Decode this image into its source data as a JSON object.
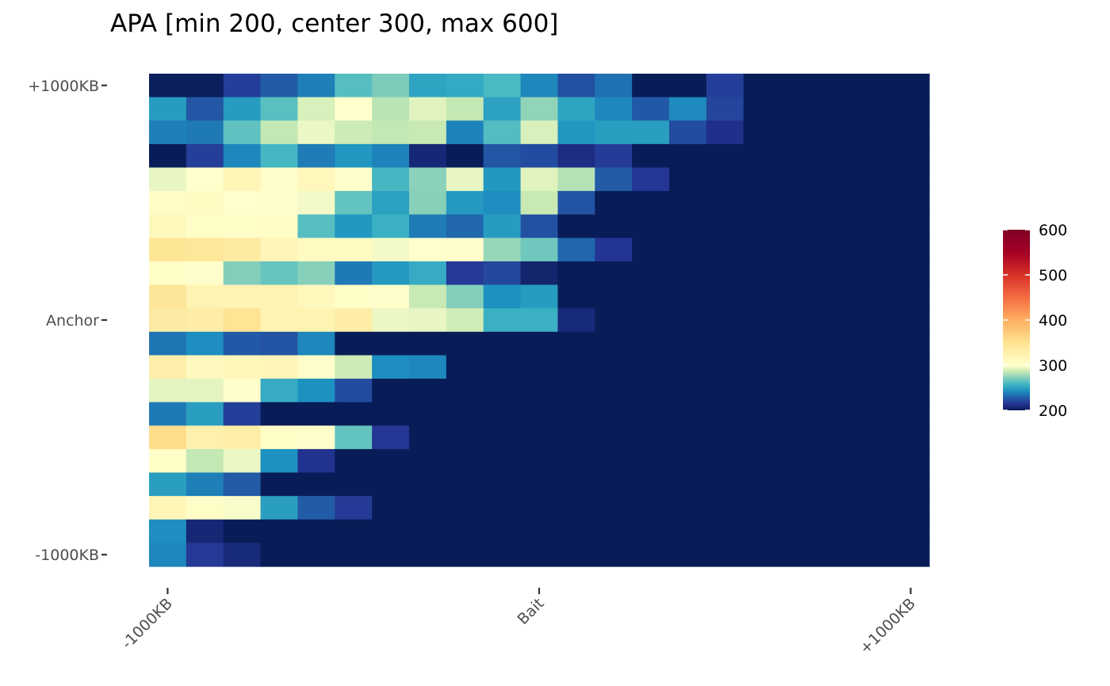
{
  "chart_data": {
    "type": "heatmap",
    "title": "APA [min 200, center 300, max 600]",
    "xlabel": "",
    "ylabel": "",
    "x_ticks": [
      "-1000KB",
      "Bait",
      "+1000KB"
    ],
    "y_ticks": [
      "+1000KB",
      "Anchor",
      "-1000KB"
    ],
    "colorbar": {
      "min": 200,
      "center": 300,
      "max": 600,
      "ticks": [
        200,
        300,
        400,
        500,
        600
      ],
      "palette": [
        "#081d58",
        "#253494",
        "#225ea8",
        "#1d91c0",
        "#41b6c4",
        "#7fcdbb",
        "#c7e9b4",
        "#ffffcc",
        "#fee391",
        "#fdae61",
        "#f46d43",
        "#d73027",
        "#a50026",
        "#800026"
      ]
    },
    "n_cols": 21,
    "n_rows": 21,
    "grid": false,
    "legend_position": "right",
    "rows_top_to_bottom": [
      [
        201,
        201,
        218,
        228,
        238,
        262,
        271,
        250,
        252,
        259,
        240,
        224,
        234,
        200,
        200,
        218,
        200,
        200,
        200,
        200,
        200
      ],
      [
        247,
        226,
        247,
        263,
        290,
        300,
        283,
        292,
        285,
        249,
        275,
        250,
        240,
        227,
        241,
        220,
        200,
        200,
        200,
        200,
        200
      ],
      [
        238,
        236,
        264,
        285,
        295,
        287,
        285,
        286,
        239,
        261,
        290,
        245,
        248,
        248,
        222,
        212,
        200,
        200,
        200,
        200,
        200
      ],
      [
        200,
        218,
        240,
        258,
        237,
        245,
        239,
        207,
        200,
        226,
        222,
        210,
        217,
        200,
        200,
        200,
        200,
        200,
        200,
        200,
        200
      ],
      [
        294,
        300,
        318,
        302,
        314,
        301,
        258,
        274,
        294,
        245,
        292,
        282,
        228,
        215,
        200,
        200,
        200,
        200,
        200,
        200,
        200
      ],
      [
        305,
        308,
        300,
        302,
        297,
        265,
        249,
        273,
        246,
        242,
        286,
        225,
        200,
        200,
        200,
        200,
        200,
        200,
        200,
        200,
        200
      ],
      [
        313,
        303,
        303,
        305,
        262,
        245,
        255,
        237,
        231,
        247,
        224,
        200,
        200,
        200,
        200,
        200,
        200,
        200,
        200,
        200,
        200
      ],
      [
        345,
        343,
        336,
        317,
        309,
        309,
        297,
        300,
        302,
        276,
        268,
        231,
        214,
        200,
        200,
        200,
        200,
        200,
        200,
        200,
        200
      ],
      [
        303,
        302,
        272,
        266,
        273,
        236,
        246,
        253,
        216,
        221,
        205,
        200,
        200,
        200,
        200,
        200,
        200,
        200,
        200,
        200,
        200
      ],
      [
        344,
        322,
        321,
        321,
        313,
        303,
        302,
        286,
        272,
        243,
        247,
        200,
        200,
        200,
        200,
        200,
        200,
        200,
        200,
        200,
        200
      ],
      [
        335,
        332,
        348,
        321,
        322,
        333,
        295,
        294,
        288,
        255,
        255,
        208,
        200,
        200,
        200,
        200,
        200,
        200,
        200,
        200,
        200
      ],
      [
        235,
        242,
        227,
        225,
        240,
        200,
        200,
        200,
        200,
        200,
        200,
        200,
        200,
        200,
        200,
        200,
        200,
        200,
        200,
        200,
        200
      ],
      [
        330,
        312,
        316,
        317,
        302,
        287,
        242,
        240,
        200,
        200,
        200,
        200,
        200,
        200,
        200,
        200,
        200,
        200,
        200,
        200,
        200
      ],
      [
        293,
        293,
        301,
        253,
        243,
        222,
        200,
        200,
        200,
        200,
        200,
        200,
        200,
        200,
        200,
        200,
        200,
        200,
        200,
        200,
        200
      ],
      [
        236,
        248,
        218,
        200,
        200,
        200,
        200,
        200,
        200,
        200,
        200,
        200,
        200,
        200,
        200,
        200,
        200,
        200,
        200,
        200,
        200
      ],
      [
        356,
        326,
        331,
        304,
        302,
        265,
        215,
        200,
        200,
        200,
        200,
        200,
        200,
        200,
        200,
        200,
        200,
        200,
        200,
        200,
        200
      ],
      [
        303,
        285,
        295,
        243,
        213,
        200,
        200,
        200,
        200,
        200,
        200,
        200,
        200,
        200,
        200,
        200,
        200,
        200,
        200,
        200,
        200
      ],
      [
        248,
        238,
        228,
        200,
        200,
        200,
        200,
        200,
        200,
        200,
        200,
        200,
        200,
        200,
        200,
        200,
        200,
        200,
        200,
        200,
        200
      ],
      [
        318,
        304,
        298,
        248,
        228,
        216,
        200,
        200,
        200,
        200,
        200,
        200,
        200,
        200,
        200,
        200,
        200,
        200,
        200,
        200,
        200
      ],
      [
        242,
        207,
        200,
        200,
        200,
        200,
        200,
        200,
        200,
        200,
        200,
        200,
        200,
        200,
        200,
        200,
        200,
        200,
        200,
        200,
        200
      ],
      [
        240,
        216,
        208,
        200,
        200,
        200,
        200,
        200,
        200,
        200,
        200,
        200,
        200,
        200,
        200,
        200,
        200,
        200,
        200,
        200,
        200
      ]
    ]
  }
}
